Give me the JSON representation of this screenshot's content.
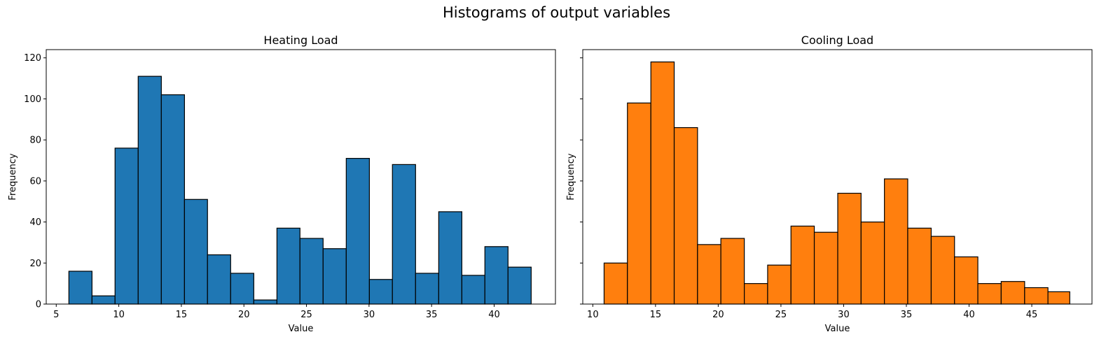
{
  "suptitle": "Histograms of output variables",
  "chart_data": [
    {
      "type": "bar",
      "title": "Heating Load",
      "xlabel": "Value",
      "ylabel": "Frequency",
      "color": "#1f77b4",
      "edgecolor": "#000000",
      "xlim": [
        4.2,
        44.9
      ],
      "ylim": [
        0,
        124
      ],
      "xticks": [
        5,
        10,
        15,
        20,
        25,
        30,
        35,
        40
      ],
      "yticks": [
        0,
        20,
        40,
        60,
        80,
        100,
        120
      ],
      "bin_edges": [
        6.01,
        7.86,
        9.7,
        11.55,
        13.4,
        15.25,
        17.09,
        18.94,
        20.79,
        22.64,
        24.48,
        26.33,
        28.18,
        30.03,
        31.87,
        33.72,
        35.57,
        37.42,
        39.26,
        41.11,
        42.96
      ],
      "values": [
        16,
        4,
        76,
        111,
        102,
        51,
        24,
        15,
        2,
        37,
        32,
        27,
        71,
        12,
        68,
        15,
        45,
        14,
        28,
        18
      ]
    },
    {
      "type": "bar",
      "title": "Cooling Load",
      "xlabel": "Value",
      "ylabel": "Frequency",
      "color": "#ff7f0e",
      "edgecolor": "#000000",
      "xlim": [
        9.2,
        49.8
      ],
      "ylim": [
        0,
        124
      ],
      "xticks": [
        10,
        15,
        20,
        25,
        30,
        35,
        40,
        45
      ],
      "yticks": [
        0,
        20,
        40,
        60,
        80,
        100,
        120
      ],
      "bin_edges": [
        10.9,
        12.76,
        14.63,
        16.49,
        18.35,
        20.21,
        22.08,
        23.94,
        25.8,
        27.66,
        29.53,
        31.39,
        33.25,
        35.11,
        36.98,
        38.84,
        40.7,
        42.56,
        44.43,
        46.29,
        48.03
      ],
      "values": [
        20,
        98,
        118,
        86,
        29,
        32,
        10,
        19,
        38,
        35,
        54,
        40,
        61,
        37,
        33,
        23,
        10,
        11,
        8,
        6
      ]
    }
  ]
}
